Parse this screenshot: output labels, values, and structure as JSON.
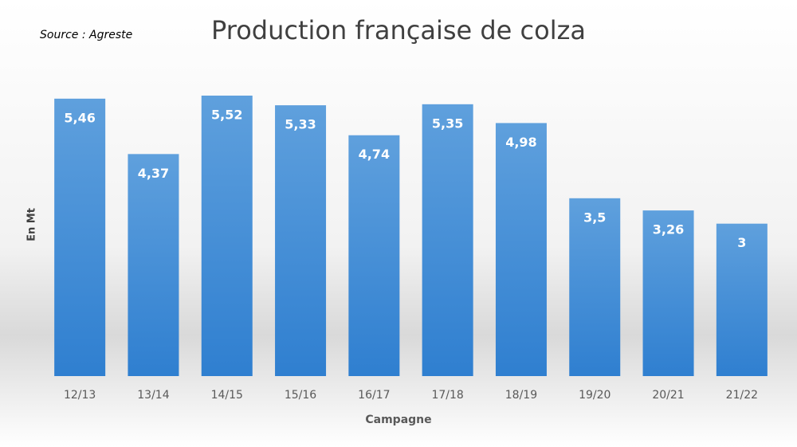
{
  "chart_data": {
    "type": "bar",
    "title": "Production française de colza",
    "subtitle": "Source : Agreste",
    "x_label": "Campagne",
    "y_label": "En Mt",
    "categories": [
      "12/13",
      "13/14",
      "14/15",
      "15/16",
      "16/17",
      "17/18",
      "18/19",
      "19/20",
      "20/21",
      "21/22"
    ],
    "values": [
      5.46,
      4.37,
      5.52,
      5.33,
      4.74,
      5.35,
      4.98,
      3.5,
      3.26,
      3
    ],
    "value_labels": [
      "5,46",
      "4,37",
      "5,52",
      "5,33",
      "4,74",
      "5,35",
      "4,98",
      "3,5",
      "3,26",
      "3"
    ],
    "color": "#4a90d9"
  }
}
